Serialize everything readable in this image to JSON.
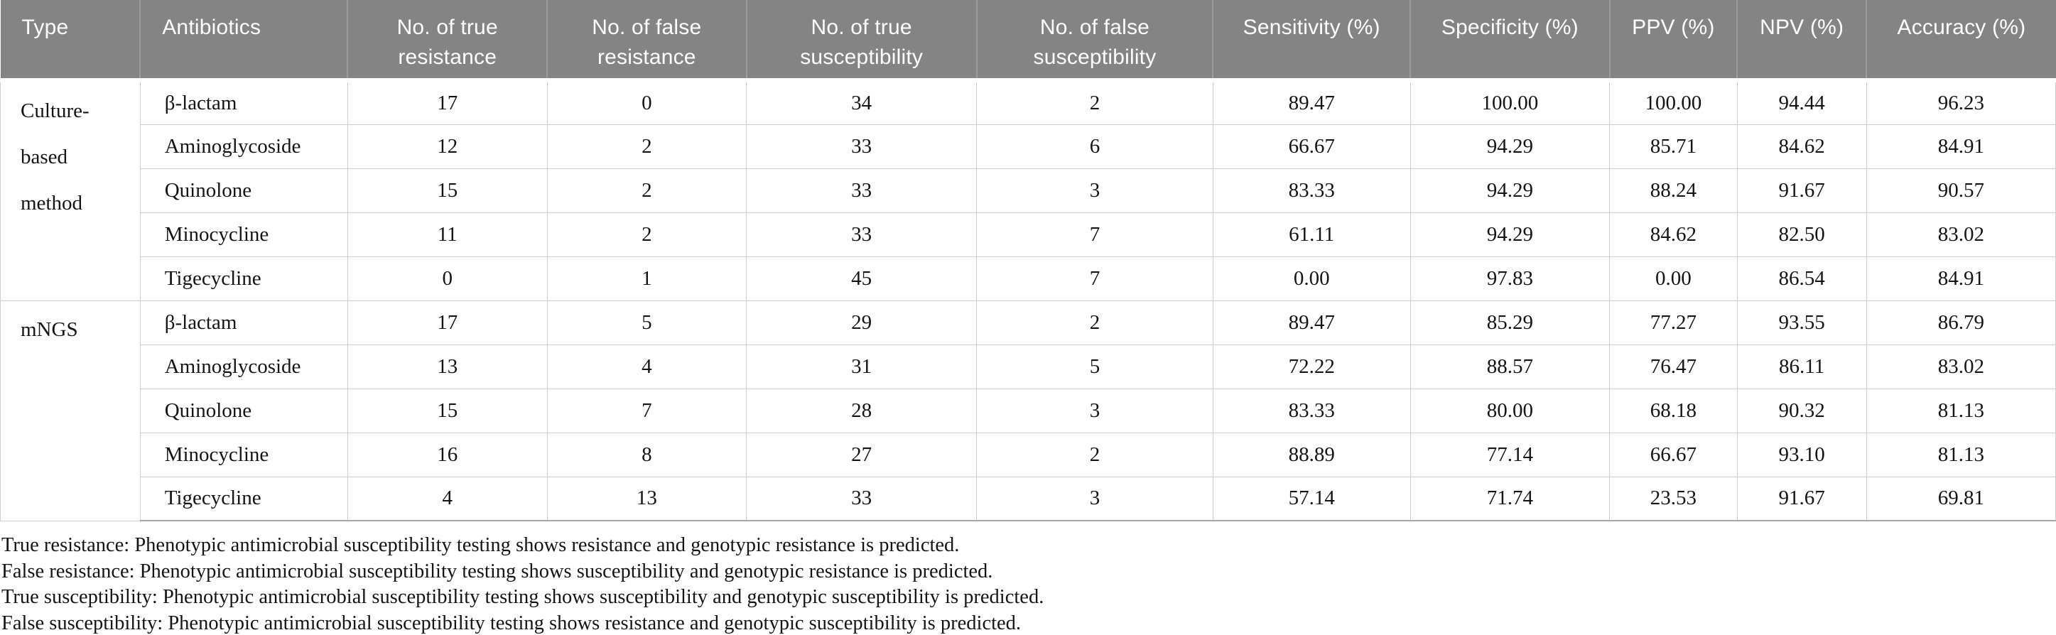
{
  "table": {
    "headers": [
      "Type",
      "Antibiotics",
      "No. of true resistance",
      "No. of false resistance",
      "No. of true susceptibility",
      "No. of false susceptibility",
      "Sensitivity (%)",
      "Specificity (%)",
      "PPV (%)",
      "NPV (%)",
      "Accuracy (%)"
    ],
    "groups": [
      {
        "type": "Culture-based method",
        "rows": [
          {
            "antibiotic": "β-lactam",
            "values": [
              "17",
              "0",
              "34",
              "2",
              "89.47",
              "100.00",
              "100.00",
              "94.44",
              "96.23"
            ]
          },
          {
            "antibiotic": "Aminoglycoside",
            "values": [
              "12",
              "2",
              "33",
              "6",
              "66.67",
              "94.29",
              "85.71",
              "84.62",
              "84.91"
            ]
          },
          {
            "antibiotic": "Quinolone",
            "values": [
              "15",
              "2",
              "33",
              "3",
              "83.33",
              "94.29",
              "88.24",
              "91.67",
              "90.57"
            ]
          },
          {
            "antibiotic": "Minocycline",
            "values": [
              "11",
              "2",
              "33",
              "7",
              "61.11",
              "94.29",
              "84.62",
              "82.50",
              "83.02"
            ]
          },
          {
            "antibiotic": "Tigecycline",
            "values": [
              "0",
              "1",
              "45",
              "7",
              "0.00",
              "97.83",
              "0.00",
              "86.54",
              "84.91"
            ]
          }
        ]
      },
      {
        "type": "mNGS",
        "rows": [
          {
            "antibiotic": "β-lactam",
            "values": [
              "17",
              "5",
              "29",
              "2",
              "89.47",
              "85.29",
              "77.27",
              "93.55",
              "86.79"
            ]
          },
          {
            "antibiotic": "Aminoglycoside",
            "values": [
              "13",
              "4",
              "31",
              "5",
              "72.22",
              "88.57",
              "76.47",
              "86.11",
              "83.02"
            ]
          },
          {
            "antibiotic": "Quinolone",
            "values": [
              "15",
              "7",
              "28",
              "3",
              "83.33",
              "80.00",
              "68.18",
              "90.32",
              "81.13"
            ]
          },
          {
            "antibiotic": "Minocycline",
            "values": [
              "16",
              "8",
              "27",
              "2",
              "88.89",
              "77.14",
              "66.67",
              "93.10",
              "81.13"
            ]
          },
          {
            "antibiotic": "Tigecycline",
            "values": [
              "4",
              "13",
              "33",
              "3",
              "57.14",
              "71.74",
              "23.53",
              "91.67",
              "69.81"
            ]
          }
        ]
      }
    ]
  },
  "footnotes": [
    "True resistance: Phenotypic antimicrobial susceptibility testing shows resistance and genotypic resistance is predicted.",
    "False resistance: Phenotypic antimicrobial susceptibility testing shows susceptibility and genotypic resistance is predicted.",
    "True susceptibility: Phenotypic antimicrobial susceptibility testing shows susceptibility and genotypic susceptibility is predicted.",
    "False susceptibility: Phenotypic antimicrobial susceptibility testing shows resistance and genotypic susceptibility is predicted."
  ],
  "colors": {
    "header_bg": "#848484",
    "header_text": "#ffffff",
    "grid_line": "#cfcfcf",
    "body_text": "#141414"
  }
}
